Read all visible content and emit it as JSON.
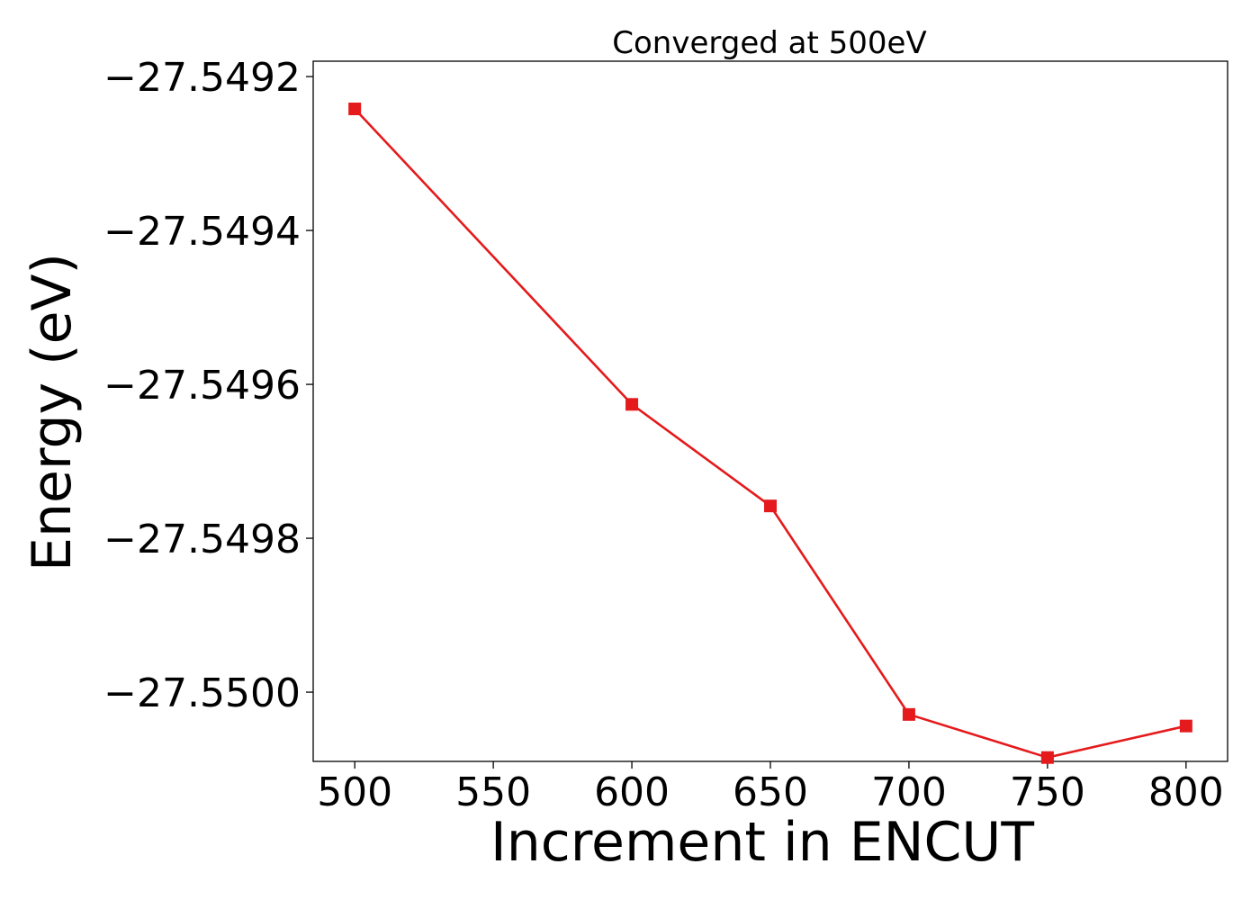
{
  "chart_data": {
    "type": "line",
    "title": "Converged at 500eV",
    "xlabel": "Increment in ENCUT",
    "ylabel": "Energy (eV)",
    "x": [
      500,
      600,
      650,
      700,
      750,
      800
    ],
    "series": [
      {
        "values": [
          -27.549242,
          -27.549626,
          -27.549758,
          -27.550029,
          -27.550085,
          -27.550044
        ],
        "color": "#e41a1c",
        "marker": "square"
      }
    ],
    "xlim": [
      485,
      815
    ],
    "ylim": [
      -27.55009,
      -27.54918
    ],
    "xticks": [
      500,
      550,
      600,
      650,
      700,
      750,
      800
    ],
    "xtick_labels": [
      "500",
      "550",
      "600",
      "650",
      "700",
      "750",
      "800"
    ],
    "yticks": [
      -27.5492,
      -27.5494,
      -27.5496,
      -27.5498,
      -27.55
    ],
    "ytick_labels": [
      "−27.5492",
      "−27.5494",
      "−27.5496",
      "−27.5498",
      "−27.5500"
    ],
    "grid": false,
    "legend": "none"
  }
}
